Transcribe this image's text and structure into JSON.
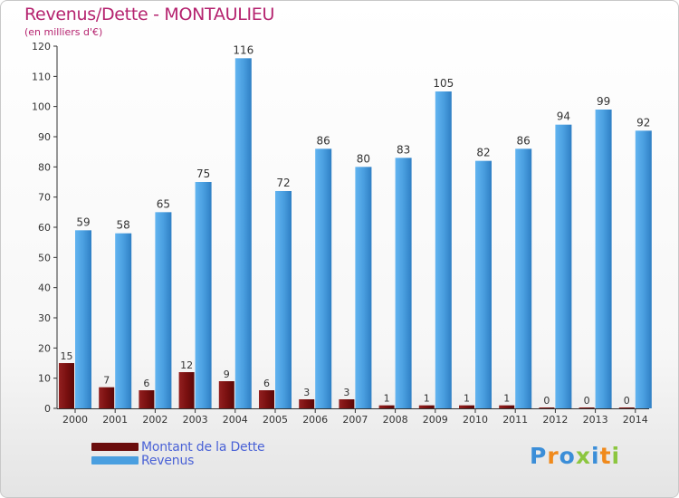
{
  "title": "Revenus/Dette - MONTAULIEU",
  "subtitle": "(en milliers d'€)",
  "colors": {
    "debt": "#7a1010",
    "revenue": "#4a9fe0",
    "title": "#b5236f",
    "legend_text": "#4a62d6"
  },
  "logo": {
    "text": "Proxiti",
    "letters": [
      "P",
      "r",
      "o",
      "x",
      "i",
      "t",
      "i"
    ],
    "colors": [
      "#3b8ed8",
      "#f08a1c",
      "#3b8ed8",
      "#8cc63f",
      "#3b8ed8",
      "#f08a1c",
      "#8cc63f"
    ]
  },
  "chart_data": {
    "type": "bar",
    "categories": [
      "2000",
      "2001",
      "2002",
      "2003",
      "2004",
      "2005",
      "2006",
      "2007",
      "2008",
      "2009",
      "2010",
      "2011",
      "2012",
      "2013",
      "2014"
    ],
    "series": [
      {
        "name": "Montant de la Dette",
        "values": [
          15,
          7,
          6,
          12,
          9,
          6,
          3,
          3,
          1,
          1,
          1,
          1,
          0,
          0,
          0
        ]
      },
      {
        "name": "Revenus",
        "values": [
          59,
          58,
          65,
          75,
          116,
          72,
          86,
          80,
          83,
          105,
          82,
          86,
          94,
          99,
          92
        ]
      }
    ],
    "ylim": [
      0,
      120
    ],
    "yticks": [
      0,
      10,
      20,
      30,
      40,
      50,
      60,
      70,
      80,
      90,
      100,
      110,
      120
    ],
    "grid": false,
    "legend_position": "bottom-left"
  }
}
